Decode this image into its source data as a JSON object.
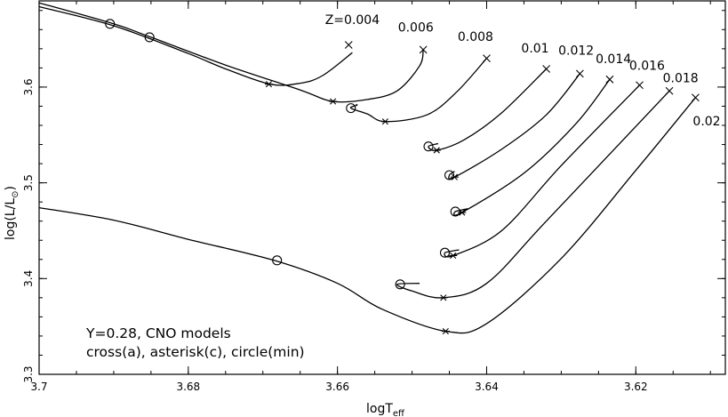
{
  "chart_data": {
    "type": "line",
    "xlabel_main": "logT",
    "xlabel_sub": "eff",
    "ylabel_main": "log(L/L",
    "ylabel_sub": "⊙",
    "ylabel_close": ")",
    "x_reversed": true,
    "xlim": [
      3.7,
      3.608
    ],
    "ylim": [
      3.3,
      3.69
    ],
    "xticks": [
      3.7,
      3.68,
      3.66,
      3.64,
      3.62
    ],
    "xtick_labels": [
      "3.7",
      "3.68",
      "3.66",
      "3.64",
      "3.62"
    ],
    "yticks": [
      3.3,
      3.4,
      3.5,
      3.6
    ],
    "ytick_labels": [
      "3.3",
      "3.4",
      "3.5",
      "3.6"
    ],
    "annotations": [
      "Y=0.28, CNO models",
      "cross(a), asterisk(c), circle(min)"
    ],
    "marker_legend": {
      "cross": "a",
      "asterisk": "c",
      "circle": "min"
    },
    "series": [
      {
        "name": "Z=0.004",
        "points": [
          [
            3.7,
            3.684
          ],
          [
            3.69,
            3.664
          ],
          [
            3.68,
            3.635
          ],
          [
            3.675,
            3.619
          ],
          [
            3.669,
            3.603
          ],
          [
            3.665,
            3.604
          ],
          [
            3.662,
            3.612
          ],
          [
            3.658,
            3.636
          ]
        ],
        "circle": [
          3.6905,
          3.666
        ],
        "asterisk": [
          3.6692,
          3.603
        ],
        "cross": [
          3.6585,
          3.644
        ]
      },
      {
        "name": "0.006",
        "points": [
          [
            3.7,
            3.688
          ],
          [
            3.69,
            3.666
          ],
          [
            3.685,
            3.652
          ],
          [
            3.675,
            3.623
          ],
          [
            3.665,
            3.597
          ],
          [
            3.6606,
            3.585
          ],
          [
            3.656,
            3.587
          ],
          [
            3.652,
            3.596
          ],
          [
            3.649,
            3.622
          ],
          [
            3.6485,
            3.639
          ]
        ],
        "circle": [
          3.6852,
          3.652
        ],
        "asterisk": [
          3.6606,
          3.585
        ],
        "cross": [
          3.6485,
          3.639
        ]
      },
      {
        "name": "0.008",
        "points": [
          [
            3.6575,
            3.582
          ],
          [
            3.6574,
            3.581
          ],
          [
            3.6582,
            3.578
          ],
          [
            3.656,
            3.572
          ],
          [
            3.6536,
            3.564
          ],
          [
            3.648,
            3.571
          ],
          [
            3.644,
            3.595
          ],
          [
            3.64,
            3.63
          ]
        ],
        "circle": [
          3.6582,
          3.578
        ],
        "asterisk": [
          3.6536,
          3.564
        ],
        "cross": [
          3.64,
          3.63
        ]
      },
      {
        "name": "0.01",
        "points": [
          [
            3.6465,
            3.541
          ],
          [
            3.6478,
            3.538
          ],
          [
            3.6467,
            3.534
          ],
          [
            3.643,
            3.545
          ],
          [
            3.638,
            3.573
          ],
          [
            3.632,
            3.619
          ]
        ],
        "circle": [
          3.6478,
          3.538
        ],
        "asterisk": [
          3.6467,
          3.534
        ],
        "cross": [
          3.632,
          3.619
        ]
      },
      {
        "name": "0.012",
        "points": [
          [
            3.6443,
            3.512
          ],
          [
            3.645,
            3.508
          ],
          [
            3.6443,
            3.506
          ],
          [
            3.638,
            3.535
          ],
          [
            3.632,
            3.571
          ],
          [
            3.6275,
            3.614
          ]
        ],
        "circle": [
          3.645,
          3.508
        ],
        "asterisk": [
          3.6443,
          3.506
        ],
        "cross": [
          3.6275,
          3.614
        ]
      },
      {
        "name": "0.014",
        "points": [
          [
            3.6425,
            3.473
          ],
          [
            3.6442,
            3.47
          ],
          [
            3.6433,
            3.469
          ],
          [
            3.635,
            3.51
          ],
          [
            3.628,
            3.562
          ],
          [
            3.6235,
            3.608
          ]
        ],
        "circle": [
          3.6442,
          3.47
        ],
        "asterisk": [
          3.6433,
          3.469
        ],
        "cross": [
          3.6235,
          3.608
        ]
      },
      {
        "name": "0.016",
        "points": [
          [
            3.6437,
            3.43
          ],
          [
            3.6456,
            3.427
          ],
          [
            3.6445,
            3.424
          ],
          [
            3.638,
            3.45
          ],
          [
            3.63,
            3.518
          ],
          [
            3.6195,
            3.602
          ]
        ],
        "circle": [
          3.6456,
          3.427
        ],
        "asterisk": [
          3.6445,
          3.424
        ],
        "cross": [
          3.6195,
          3.602
        ]
      },
      {
        "name": "0.018",
        "points": [
          [
            3.649,
            3.395
          ],
          [
            3.652,
            3.394
          ],
          [
            3.65,
            3.387
          ],
          [
            3.6458,
            3.38
          ],
          [
            3.64,
            3.395
          ],
          [
            3.632,
            3.46
          ],
          [
            3.6155,
            3.596
          ]
        ],
        "circle": [
          3.6516,
          3.394
        ],
        "asterisk": [
          3.6458,
          3.38
        ],
        "cross": [
          3.6155,
          3.596
        ]
      },
      {
        "name": "0.02",
        "points": [
          [
            3.7,
            3.474
          ],
          [
            3.69,
            3.461
          ],
          [
            3.68,
            3.441
          ],
          [
            3.6685,
            3.419
          ],
          [
            3.66,
            3.395
          ],
          [
            3.654,
            3.368
          ],
          [
            3.6455,
            3.345
          ],
          [
            3.64,
            3.353
          ],
          [
            3.63,
            3.421
          ],
          [
            3.62,
            3.513
          ],
          [
            3.612,
            3.589
          ]
        ],
        "circle": [
          3.6681,
          3.419
        ],
        "asterisk": [
          3.6455,
          3.345
        ],
        "cross": [
          3.612,
          3.589
        ]
      }
    ],
    "series_label_positions": {
      "Z=0.004": [
        3.658,
        3.666
      ],
      "0.006": [
        3.6495,
        3.658
      ],
      "0.008": [
        3.6415,
        3.648
      ],
      "0.01": [
        3.6335,
        3.636
      ],
      "0.012": [
        3.628,
        3.634
      ],
      "0.014": [
        3.623,
        3.625
      ],
      "0.016": [
        3.6185,
        3.618
      ],
      "0.018": [
        3.614,
        3.605
      ],
      "0.02": [
        3.6105,
        3.56
      ]
    }
  }
}
